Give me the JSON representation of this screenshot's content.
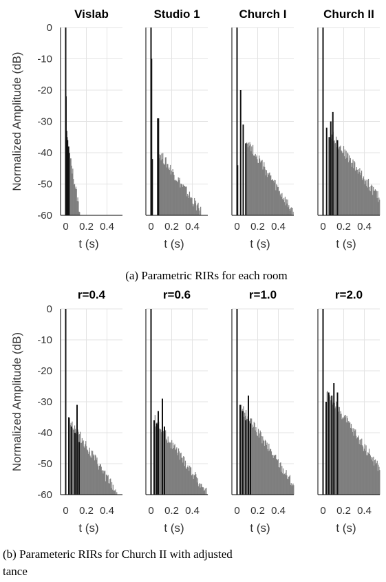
{
  "captions": {
    "a": "(a) Parametric RIRs for each room",
    "b_line1": "(b) Parameteric RIRs for Church II with adjusted",
    "b_line2": "tance"
  },
  "colors": {
    "tail": "#7f7f7f",
    "impulse": "#111111",
    "grid": "#e3e3e3",
    "axis": "#000000"
  },
  "chart_data": [
    {
      "type": "bar",
      "group": "a",
      "ylabel": "Normalized Amplitude (dB)",
      "ylim": [
        -60,
        0
      ],
      "xlim": [
        -0.05,
        0.55
      ],
      "yticks": [
        0,
        -10,
        -20,
        -30,
        -40,
        -50,
        -60
      ],
      "xticks": [
        0,
        0.2,
        0.4
      ],
      "xticklabels": [
        "0",
        "0.2",
        "0.4"
      ],
      "xlabel": "t (s)",
      "grid": true,
      "panels": [
        {
          "title": "Vislab",
          "impulses": [
            [
              0.0,
              0
            ],
            [
              0.003,
              -22
            ],
            [
              0.008,
              -33
            ],
            [
              0.012,
              -35
            ],
            [
              0.018,
              -36
            ],
            [
              0.022,
              -40
            ],
            [
              0.028,
              -38
            ],
            [
              0.032,
              -40
            ]
          ],
          "tail": {
            "start": 0.035,
            "end": 0.14,
            "start_db": -41,
            "end_db": -60
          }
        },
        {
          "title": "Studio 1",
          "impulses": [
            [
              0.0,
              0
            ],
            [
              0.005,
              -10
            ],
            [
              0.012,
              -42
            ],
            [
              0.065,
              -29
            ],
            [
              0.072,
              -29
            ]
          ],
          "tail": {
            "start": 0.075,
            "end": 0.48,
            "start_db": -40,
            "end_db": -59
          }
        },
        {
          "title": "Church I",
          "impulses": [
            [
              0.0,
              0
            ],
            [
              0.005,
              -44
            ],
            [
              0.035,
              -20
            ],
            [
              0.06,
              -31
            ],
            [
              0.085,
              -37
            ]
          ],
          "tail": {
            "start": 0.09,
            "end": 0.55,
            "start_db": -36,
            "end_db": -60
          }
        },
        {
          "title": "Church II",
          "impulses": [
            [
              0.0,
              0
            ],
            [
              0.035,
              -32
            ],
            [
              0.06,
              -35
            ],
            [
              0.075,
              -30
            ],
            [
              0.095,
              -27
            ],
            [
              0.14,
              -36
            ]
          ],
          "tail": {
            "start": 0.07,
            "end": 0.55,
            "start_db": -34,
            "end_db": -55
          }
        }
      ]
    },
    {
      "type": "bar",
      "group": "b",
      "ylabel": "Normalized Amplitude (dB)",
      "ylim": [
        -60,
        0
      ],
      "xlim": [
        -0.05,
        0.55
      ],
      "yticks": [
        0,
        -10,
        -20,
        -30,
        -40,
        -50,
        -60
      ],
      "xticks": [
        0,
        0.2,
        0.4
      ],
      "xticklabels": [
        "0",
        "0.2",
        "0.4"
      ],
      "xlabel": "t (s)",
      "grid": true,
      "panels": [
        {
          "title": "r=0.4",
          "impulses": [
            [
              0.0,
              0
            ],
            [
              0.03,
              -35
            ],
            [
              0.055,
              -38
            ],
            [
              0.09,
              -40
            ],
            [
              0.11,
              -31
            ],
            [
              0.13,
              -43
            ]
          ],
          "tail": {
            "start": 0.035,
            "end": 0.5,
            "start_db": -36,
            "end_db": -60
          }
        },
        {
          "title": "r=0.6",
          "impulses": [
            [
              0.0,
              0
            ],
            [
              0.03,
              -36
            ],
            [
              0.055,
              -37
            ],
            [
              0.07,
              -33
            ],
            [
              0.11,
              -29
            ],
            [
              0.13,
              -38
            ]
          ],
          "tail": {
            "start": 0.035,
            "end": 0.55,
            "start_db": -36,
            "end_db": -60
          }
        },
        {
          "title": "r=1.0",
          "impulses": [
            [
              0.0,
              0
            ],
            [
              0.03,
              -31
            ],
            [
              0.055,
              -33
            ],
            [
              0.085,
              -36
            ],
            [
              0.11,
              -28
            ],
            [
              0.13,
              -37
            ]
          ],
          "tail": {
            "start": 0.035,
            "end": 0.55,
            "start_db": -32,
            "end_db": -57
          }
        },
        {
          "title": "r=2.0",
          "impulses": [
            [
              0.0,
              0
            ],
            [
              0.03,
              -30
            ],
            [
              0.055,
              -27
            ],
            [
              0.085,
              -28
            ],
            [
              0.105,
              -24
            ],
            [
              0.14,
              -27
            ]
          ],
          "tail": {
            "start": 0.035,
            "end": 0.55,
            "start_db": -27,
            "end_db": -52
          }
        }
      ]
    }
  ]
}
